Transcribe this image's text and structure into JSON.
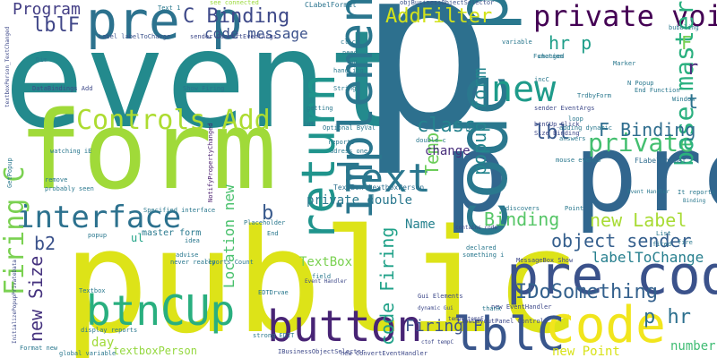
{
  "words": [
    {
      "t": "event",
      "c": "#238a8d"
    },
    {
      "t": "p",
      "c": "#2d708e"
    },
    {
      "t": "form",
      "c": "#a0da39"
    },
    {
      "t": "public",
      "c": "#dde318"
    },
    {
      "t": "p pre",
      "c": "#31668e"
    },
    {
      "t": "code pre",
      "c": "#2a788e"
    },
    {
      "t": "pre code",
      "c": "#3b528b"
    },
    {
      "t": "pre p",
      "c": "#2c728e"
    },
    {
      "t": "implement",
      "c": "#2a768e"
    },
    {
      "t": "return",
      "c": "#1f948c"
    },
    {
      "t": "Controls Add",
      "c": "#addc30"
    },
    {
      "t": "Text",
      "c": "#2a778e"
    },
    {
      "t": "interface",
      "c": "#2c718e"
    },
    {
      "t": "btnCUp",
      "c": "#29af7f"
    },
    {
      "t": "button",
      "c": "#482475"
    },
    {
      "t": "code",
      "c": "#f1e51d"
    },
    {
      "t": "lblC",
      "c": "#39568c"
    },
    {
      "t": "new",
      "c": "#1e9b8a"
    },
    {
      "t": "private void",
      "c": "#440154"
    },
    {
      "t": "C Binding",
      "c": "#3e4989"
    },
    {
      "t": "Program",
      "c": "#433e85"
    },
    {
      "t": "lblF",
      "c": "#404688"
    },
    {
      "t": "AddFilter",
      "c": "#d2e21b"
    },
    {
      "t": "code message",
      "c": "#3b518b"
    },
    {
      "t": "popup form",
      "c": "#25858e"
    },
    {
      "t": "class",
      "c": "#26828e"
    },
    {
      "t": "object sender",
      "c": "#355f8d"
    },
    {
      "t": "IDoSomething",
      "c": "#34618d"
    },
    {
      "t": "Binding",
      "c": "#56c667"
    },
    {
      "t": "new Label",
      "c": "#a8db34"
    },
    {
      "t": "labelToChange",
      "c": "#277f8e"
    },
    {
      "t": "private",
      "c": "#44bf70"
    },
    {
      "t": "base master",
      "c": "#2ab07f"
    },
    {
      "t": "F Binding",
      "c": "#2e6d8e"
    },
    {
      "t": "Firing C",
      "c": "#7ad151"
    },
    {
      "t": "Location new",
      "c": "#4ac16d"
    },
    {
      "t": "new Size",
      "c": "#46337f"
    },
    {
      "t": "code Firing",
      "c": "#1fa188"
    },
    {
      "t": "Temp",
      "c": "#6ccd5a"
    },
    {
      "t": "Firing F",
      "c": "#3b528b"
    },
    {
      "t": "b2",
      "c": "#3b528b"
    },
    {
      "t": "p hr",
      "c": "#2d708e"
    },
    {
      "t": "hr p",
      "c": "#1f9e89"
    },
    {
      "t": "lbl",
      "c": "#38588c"
    },
    {
      "t": "private double",
      "c": "#2a788e"
    },
    {
      "t": "Name",
      "c": "#26828e"
    },
    {
      "t": "TextBox",
      "c": "#7ad151"
    },
    {
      "t": "b",
      "c": "#38598c"
    },
    {
      "t": "change",
      "c": "#472d7b"
    },
    {
      "t": "day",
      "c": "#a0da39"
    },
    {
      "t": "textboxPerson",
      "c": "#95d840"
    },
    {
      "t": "new Point",
      "c": "#d8e219"
    },
    {
      "t": "number",
      "c": "#3fbc73"
    },
    {
      "t": "F",
      "c": "#75d054"
    },
    {
      "t": "t",
      "c": "#2c728e"
    },
    {
      "t": "r",
      "c": "#472a7a"
    },
    {
      "t": "ul",
      "c": "#20a386"
    },
    {
      "t": "master form",
      "c": "#29798e"
    },
    {
      "t": "TextBox textboxPerson",
      "c": "#2d708e"
    },
    {
      "t": "FLabelFormat",
      "c": "#2f6c8e"
    },
    {
      "t": "see connected",
      "c": "#9bd93c"
    },
    {
      "t": "CLabelFormat",
      "c": "#2b748e"
    },
    {
      "t": "objBusinessObjectSelector",
      "c": "#3b528b"
    },
    {
      "t": "NotifyPropertyChanged",
      "c": "#481b6d"
    },
    {
      "t": "Show Firing",
      "c": "#2c728e"
    },
    {
      "t": "DataBindings Add",
      "c": "#3e4989"
    },
    {
      "t": "Label labelToChange",
      "c": "#3b528b"
    },
    {
      "t": "sender ConvertEventArgs",
      "c": "#3e4989"
    },
    {
      "t": "IBusinessObjectSelector",
      "c": "#3e4989"
    },
    {
      "t": "new ConvertEventHandler",
      "c": "#3e4989"
    },
    {
      "t": "FlowLayoutPanel Controls",
      "c": "#3e4989"
    },
    {
      "t": "MessageBox Show",
      "c": "#3e4989"
    },
    {
      "t": "btnCUp_Click",
      "c": "#3e4989"
    },
    {
      "t": "Size Binding",
      "c": "#3e4989"
    },
    {
      "t": "sender EventArgs",
      "c": "#3e4989"
    },
    {
      "t": "new EventHandler",
      "c": "#3e4989"
    },
    {
      "t": "Gui Elements",
      "c": "#3e4989"
    },
    {
      "t": "Event Handler",
      "c": "#3e4989"
    },
    {
      "t": "contains code",
      "c": "#3e4989"
    },
    {
      "t": "dynamic Gui",
      "c": "#3e4989"
    },
    {
      "t": "tempC tempF",
      "c": "#3e4989"
    },
    {
      "t": "ctof tempC",
      "c": "#3e4989"
    },
    {
      "t": "InitializePopupPrivateData",
      "c": "#3e4989"
    },
    {
      "t": "textboxPerson_TextChanged",
      "c": "#3e4989"
    },
    {
      "t": "Window",
      "c": "#2a788e"
    },
    {
      "t": "Point",
      "c": "#2a788e"
    },
    {
      "t": "String",
      "c": "#2a788e"
    },
    {
      "t": "Main",
      "c": "#2a788e"
    },
    {
      "t": "double c",
      "c": "#2a788e"
    },
    {
      "t": "Dim",
      "c": "#2a788e"
    },
    {
      "t": "Function",
      "c": "#2a788e"
    },
    {
      "t": "End Function",
      "c": "#2a788e"
    },
    {
      "t": "Marker",
      "c": "#2a788e"
    },
    {
      "t": "loop",
      "c": "#2a788e"
    },
    {
      "t": "adding dynamic",
      "c": "#2a788e"
    },
    {
      "t": "answers",
      "c": "#2a788e"
    },
    {
      "t": "field",
      "c": "#2a788e"
    },
    {
      "t": "handling",
      "c": "#2a788e"
    },
    {
      "t": "Two",
      "c": "#2a788e"
    },
    {
      "t": "reports",
      "c": "#2a788e"
    },
    {
      "t": "adress one",
      "c": "#2a788e"
    },
    {
      "t": "fired",
      "c": "#2a788e"
    },
    {
      "t": "fire",
      "c": "#2a788e"
    },
    {
      "t": "List",
      "c": "#2a788e"
    },
    {
      "t": "It reports",
      "c": "#2a788e"
    },
    {
      "t": "probably seen",
      "c": "#2a788e"
    },
    {
      "t": "remove",
      "c": "#2a788e"
    },
    {
      "t": "discovers",
      "c": "#2a788e"
    },
    {
      "t": "declared",
      "c": "#2a788e"
    },
    {
      "t": "something i",
      "c": "#2a788e"
    },
    {
      "t": "thank",
      "c": "#2a788e"
    },
    {
      "t": "click",
      "c": "#2a788e"
    },
    {
      "t": "need",
      "c": "#2a788e"
    },
    {
      "t": "Text 1",
      "c": "#2a788e"
    },
    {
      "t": "int",
      "c": "#2a788e"
    },
    {
      "t": "getting",
      "c": "#2a788e"
    },
    {
      "t": "variable",
      "c": "#2a788e"
    },
    {
      "t": "changed",
      "c": "#2a788e"
    },
    {
      "t": "bubbling",
      "c": "#2a788e"
    },
    {
      "t": "mouse events",
      "c": "#2a788e"
    },
    {
      "t": "N Popup",
      "c": "#2a788e"
    },
    {
      "t": "incC",
      "c": "#2a788e"
    },
    {
      "t": "TrdbyForm",
      "c": "#2a788e"
    },
    {
      "t": "End",
      "c": "#2a788e"
    },
    {
      "t": "Placeholder",
      "c": "#2a788e"
    },
    {
      "t": "idea",
      "c": "#2a788e"
    },
    {
      "t": "advise",
      "c": "#2a788e"
    },
    {
      "t": "never really",
      "c": "#2a788e"
    },
    {
      "t": "reports Count",
      "c": "#2a788e"
    },
    {
      "t": "display reports",
      "c": "#2a788e"
    },
    {
      "t": "strong EDIT",
      "c": "#2a788e"
    },
    {
      "t": "Format new",
      "c": "#2a788e"
    },
    {
      "t": "global variable",
      "c": "#2a788e"
    },
    {
      "t": "GetPopup",
      "c": "#2a788e"
    },
    {
      "t": "Textbox",
      "c": "#2a788e"
    },
    {
      "t": "watching iE",
      "c": "#2a788e"
    },
    {
      "t": "Specified interface",
      "c": "#2a788e"
    },
    {
      "t": "popup",
      "c": "#2a788e"
    },
    {
      "t": "EDTDrvae",
      "c": "#2a788e"
    },
    {
      "t": "Event Handler",
      "c": "#2a788e"
    },
    {
      "t": "Binding",
      "c": "#2a788e"
    },
    {
      "t": "Optional ByVal",
      "c": "#2a788e"
    }
  ]
}
